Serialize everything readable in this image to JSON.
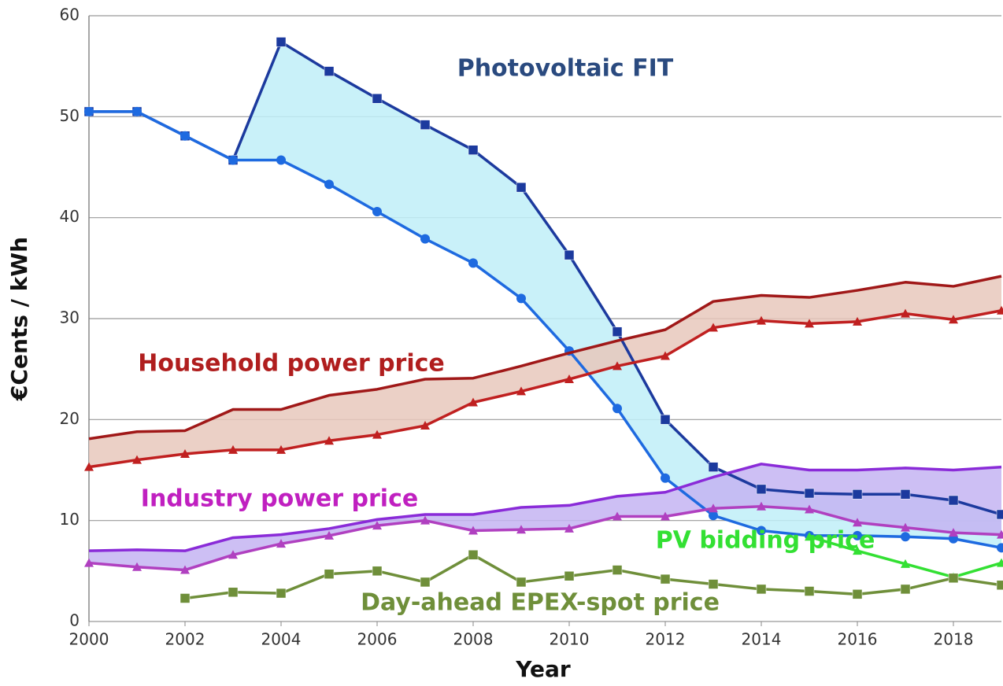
{
  "chart_data": {
    "type": "band-line",
    "x_label": "Year",
    "y_label": "€Cents / kWh",
    "x": [
      2000,
      2001,
      2002,
      2003,
      2004,
      2005,
      2006,
      2007,
      2008,
      2009,
      2010,
      2011,
      2012,
      2013,
      2014,
      2015,
      2016,
      2017,
      2018,
      2019
    ],
    "xlim": [
      2000,
      2019
    ],
    "xticks": [
      2000,
      2002,
      2004,
      2006,
      2008,
      2010,
      2012,
      2014,
      2016,
      2018
    ],
    "ylim": [
      0,
      60
    ],
    "yticks": [
      0,
      10,
      20,
      30,
      40,
      50,
      60
    ],
    "grid": true,
    "bands": [
      {
        "label": "Photovoltaic FIT",
        "label_color": "#2a4a7f",
        "fill": "#bfeef8",
        "upper": {
          "color": "#1c3a9e",
          "marker": "square",
          "values": [
            50.5,
            50.5,
            48.1,
            45.7,
            57.4,
            54.5,
            51.8,
            49.2,
            46.7,
            43,
            36.3,
            28.7,
            20,
            15.3,
            13.1,
            12.7,
            12.6,
            12.6,
            12,
            10.6
          ]
        },
        "lower": {
          "color": "#1e6ae0",
          "marker": "circle",
          "values": [
            50.5,
            50.5,
            48.1,
            45.7,
            45.7,
            43.3,
            40.6,
            37.9,
            35.5,
            32,
            26.8,
            21.1,
            14.2,
            10.5,
            9,
            8.5,
            8.5,
            8.4,
            8.2,
            7.3
          ]
        }
      },
      {
        "label": "Household power price",
        "label_color": "#b01e1e",
        "fill": "#e8c8bc",
        "upper": {
          "color": "#a01818",
          "marker": "none",
          "values": [
            18.1,
            18.8,
            18.9,
            21,
            21,
            22.4,
            23,
            24,
            24.1,
            25.3,
            26.6,
            27.8,
            28.9,
            31.7,
            32.3,
            32.1,
            32.8,
            33.6,
            33.2,
            34.2
          ]
        },
        "lower": {
          "color": "#c02020",
          "marker": "triangle",
          "values": [
            15.3,
            16,
            16.6,
            17,
            17,
            17.9,
            18.5,
            19.4,
            21.7,
            22.8,
            24,
            25.3,
            26.3,
            29.1,
            29.8,
            29.5,
            29.7,
            30.5,
            29.9,
            30.8
          ]
        }
      },
      {
        "label": "Industry power price",
        "label_color": "#c020c0",
        "fill": "#c4b4f2",
        "upper": {
          "color": "#8a2bd8",
          "marker": "none",
          "values": [
            7,
            7.1,
            7,
            8.3,
            8.6,
            9.2,
            10.1,
            10.6,
            10.6,
            11.3,
            11.5,
            12.4,
            12.8,
            14.3,
            15.6,
            15,
            15,
            15.2,
            15,
            15.3
          ]
        },
        "lower": {
          "color": "#b040c0",
          "marker": "triangle",
          "values": [
            5.8,
            5.4,
            5.1,
            6.6,
            7.7,
            8.5,
            9.5,
            10,
            9,
            9.1,
            9.2,
            10.4,
            10.4,
            11.2,
            11.4,
            11.1,
            9.8,
            9.3,
            8.8,
            8.6
          ]
        }
      }
    ],
    "series": [
      {
        "label": "PV bidding price",
        "color": "#33e033",
        "marker": "triangle",
        "values": [
          null,
          null,
          null,
          null,
          null,
          null,
          null,
          null,
          null,
          null,
          null,
          null,
          null,
          null,
          null,
          8.4,
          7,
          5.7,
          4.4,
          5.8
        ]
      },
      {
        "label": "Day-ahead EPEX-spot price",
        "color": "#6f8f3a",
        "marker": "square",
        "values": [
          null,
          null,
          2.3,
          2.9,
          2.8,
          4.7,
          5,
          3.9,
          6.6,
          3.9,
          4.5,
          5.1,
          4.2,
          3.7,
          3.2,
          3,
          2.7,
          3.2,
          4.3,
          3.6
        ]
      }
    ]
  }
}
